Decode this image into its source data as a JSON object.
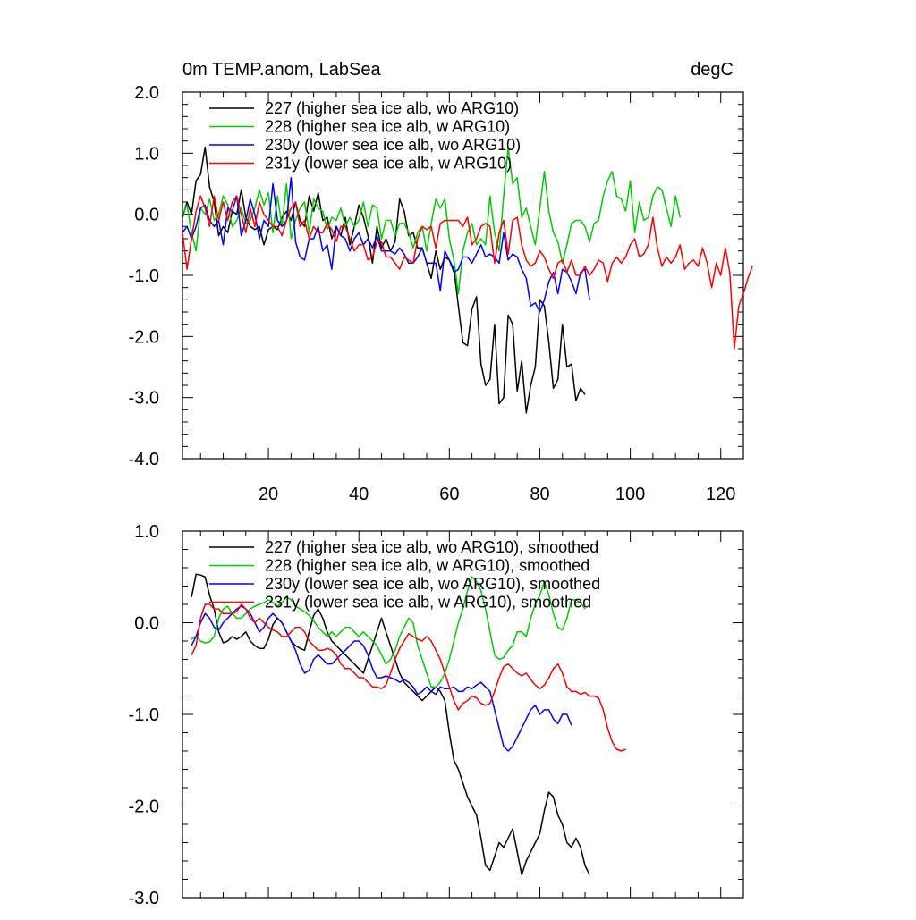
{
  "chart_data": [
    {
      "type": "line",
      "title": "0m TEMP.anom, LabSea",
      "units": "degC",
      "xlim": [
        1,
        125
      ],
      "ylim": [
        -4.0,
        2.0
      ],
      "xticks": [
        20,
        40,
        60,
        80,
        100,
        120
      ],
      "xtick_labels": [
        "20",
        "40",
        "60",
        "80",
        "100",
        "120"
      ],
      "yticks": [
        2.0,
        1.0,
        0.0,
        -1.0,
        -2.0,
        -3.0,
        -4.0
      ],
      "ytick_labels": [
        "2.0",
        "1.0",
        "0.0",
        "-1.0",
        "-2.0",
        "-3.0",
        "-4.0"
      ],
      "legend_position": "top-left",
      "series": [
        {
          "name": "227 (higher sea ice alb, wo ARG10)",
          "color": "#000000",
          "x_start": 1,
          "values": [
            -0.05,
            0.2,
            0.0,
            0.55,
            0.65,
            1.1,
            0.45,
            0.2,
            -0.35,
            -0.2,
            -0.3,
            0.05,
            0.0,
            0.4,
            -0.05,
            -0.2,
            -0.25,
            -0.2,
            -0.5,
            -0.25,
            -0.2,
            -0.25,
            -0.05,
            0.05,
            -0.1,
            0.2,
            -0.1,
            -0.2,
            0.3,
            0.05,
            0.35,
            -0.1,
            -0.05,
            -0.4,
            -0.2,
            -0.35,
            -0.05,
            -0.5,
            -0.2,
            0.15,
            -0.05,
            -0.35,
            -0.8,
            -0.2,
            -0.55,
            -0.4,
            -0.6,
            -0.45,
            0.25,
            0.05,
            -0.35,
            -0.3,
            -0.55,
            -0.55,
            -0.8,
            -1.05,
            -0.6,
            -0.9,
            -0.7,
            -0.75,
            -0.9,
            -1.5,
            -2.1,
            -2.15,
            -1.55,
            -1.35,
            -2.45,
            -2.8,
            -2.7,
            -1.8,
            -3.1,
            -3.0,
            -1.65,
            -1.8,
            -2.9,
            -2.4,
            -3.25,
            -2.8,
            -2.5,
            -1.4,
            -1.5,
            -2.1,
            -2.85,
            -2.7,
            -1.8,
            -2.5,
            -2.45,
            -3.05,
            -2.85,
            -2.95
          ]
        },
        {
          "name": "228 (higher sea ice alb, w ARG10)",
          "color": "#00cc00",
          "x_start": 1,
          "values": [
            0.0,
            0.15,
            -0.3,
            -0.6,
            0.1,
            0.0,
            0.25,
            -0.1,
            0.0,
            0.3,
            0.15,
            -0.2,
            -0.1,
            0.1,
            -0.15,
            -0.1,
            0.1,
            0.4,
            0.15,
            0.35,
            -0.3,
            0.3,
            -0.2,
            0.5,
            -0.4,
            -0.1,
            0.1,
            0.2,
            -0.3,
            0.25,
            0.1,
            0.05,
            -0.25,
            -0.05,
            -0.1,
            0.1,
            -0.2,
            -0.05,
            -0.2,
            -0.1,
            0.2,
            -0.2,
            0.15,
            0.1,
            -0.4,
            -0.1,
            -0.1,
            -0.35,
            -0.15,
            -0.15,
            -0.3,
            -0.55,
            -0.3,
            -0.2,
            -0.6,
            -0.15,
            0.25,
            0.1,
            0.25,
            -0.4,
            -0.75,
            -1.3,
            -0.6,
            -0.3,
            -0.15,
            -0.5,
            -0.4,
            -0.5,
            0.3,
            -0.3,
            -0.6,
            0.3,
            1.1,
            0.5,
            0.6,
            -0.05,
            0.1,
            -0.2,
            -0.5,
            0.1,
            0.7,
            0.05,
            -0.3,
            -0.45,
            -0.8,
            -0.5,
            -0.15,
            -0.1,
            -0.1,
            -0.2,
            -0.45,
            -0.15,
            -0.1,
            0.3,
            0.55,
            0.7,
            0.3,
            0.25,
            0.05,
            0.55,
            -0.3,
            0.2,
            -0.1,
            -0.05,
            0.3,
            0.45,
            0.4,
            0.1,
            -0.2,
            0.3,
            -0.05
          ]
        },
        {
          "name": "230y (lower sea ice alb, wo ARG10)",
          "color": "#0000ff",
          "x_start": 1,
          "values": [
            -0.3,
            -0.2,
            -0.4,
            -0.2,
            0.1,
            0.15,
            -0.1,
            -0.2,
            -0.1,
            -0.5,
            0.1,
            0.05,
            0.3,
            -0.35,
            -0.1,
            0.25,
            0.0,
            -0.4,
            -0.1,
            -0.2,
            0.5,
            -0.1,
            -0.2,
            -0.1,
            0.6,
            -0.45,
            -0.7,
            -0.75,
            -0.4,
            -0.4,
            -0.2,
            -0.6,
            -0.5,
            -0.9,
            -0.2,
            -0.35,
            -0.4,
            -0.6,
            -0.4,
            -0.3,
            -0.5,
            -0.4,
            -0.55,
            -0.35,
            -0.6,
            -0.6,
            -0.6,
            -0.65,
            -0.55,
            -0.65,
            -0.8,
            -0.8,
            -0.7,
            -0.55,
            -0.8,
            -0.8,
            -0.8,
            -1.25,
            -0.6,
            -0.75,
            -0.95,
            -0.9,
            -0.7,
            -0.7,
            -0.8,
            -0.65,
            -0.5,
            -0.7,
            -0.65,
            -0.7,
            -0.8,
            -0.3,
            -0.75,
            -0.65,
            -0.7,
            -0.9,
            -1.05,
            -1.5,
            -1.45,
            -1.6,
            -1.4,
            -1.1,
            -0.95,
            -1.3,
            -0.9,
            -0.95,
            -1.1,
            -1.3,
            -0.95,
            -0.9,
            -1.4
          ]
        },
        {
          "name": "231y (lower sea ice alb, w ARG10)",
          "color": "#ff0000",
          "x_start": 1,
          "values": [
            -0.3,
            -0.9,
            -0.4,
            0.05,
            0.3,
            0.1,
            -0.2,
            0.3,
            -0.1,
            0.2,
            -0.1,
            0.2,
            0.3,
            0.0,
            -0.3,
            0.1,
            -0.2,
            0.2,
            0.0,
            -0.1,
            -0.2,
            -0.2,
            -0.35,
            -0.1,
            0.1,
            0.2,
            -0.2,
            -0.1,
            -0.4,
            -0.2,
            -0.3,
            -0.3,
            -0.15,
            -0.25,
            -0.45,
            -0.2,
            -0.2,
            -0.4,
            -0.6,
            -0.5,
            -0.5,
            -0.75,
            -0.7,
            -0.45,
            -0.45,
            -0.7,
            -0.7,
            -0.8,
            -0.9,
            -0.7,
            -0.75,
            -0.8,
            -0.4,
            -0.2,
            -0.25,
            -0.2,
            -0.55,
            -0.15,
            -0.1,
            -0.1,
            -0.1,
            -0.1,
            -0.2,
            -0.05,
            -0.5,
            -0.4,
            -0.2,
            -0.15,
            -0.2,
            -0.8,
            -0.3,
            -0.1,
            -0.65,
            -0.1,
            -0.05,
            -0.5,
            -0.75,
            -0.85,
            -0.8,
            -0.6,
            -0.7,
            -0.9,
            -1.05,
            -0.8,
            -0.75,
            -0.95,
            -0.75,
            -1.0,
            -1.0,
            -0.85,
            -1.0,
            -0.9,
            -0.75,
            -0.8,
            -1.1,
            -0.8,
            -0.7,
            -0.8,
            -0.7,
            -0.5,
            -0.4,
            -0.7,
            -0.65,
            -0.5,
            -0.05,
            -0.55,
            -0.85,
            -0.7,
            -0.8,
            -0.7,
            -0.5,
            -0.9,
            -0.8,
            -0.75,
            -0.85,
            -0.55,
            -0.8,
            -1.2,
            -0.8,
            -1.0,
            -0.55,
            -0.95,
            -2.2,
            -1.5,
            -1.3,
            -1.05,
            -0.85
          ]
        }
      ]
    },
    {
      "type": "line",
      "title": "",
      "xlim": [
        1,
        125
      ],
      "ylim": [
        -3.0,
        1.0
      ],
      "xticks": [
        20,
        40,
        60,
        80,
        100,
        120
      ],
      "xtick_labels": [],
      "yticks": [
        1.0,
        0.0,
        -1.0,
        -2.0,
        -3.0
      ],
      "ytick_labels": [
        "1.0",
        "0.0",
        "-1.0",
        "-2.0",
        "-3.0"
      ],
      "legend_position": "top-left",
      "series": [
        {
          "name": "227 (higher sea ice alb, wo ARG10), smoothed",
          "color": "#000000",
          "x_start": 3,
          "values": [
            0.28,
            0.53,
            0.52,
            0.5,
            0.3,
            0.15,
            -0.1,
            -0.22,
            -0.2,
            -0.15,
            -0.18,
            -0.15,
            -0.1,
            -0.2,
            -0.25,
            -0.28,
            -0.28,
            -0.18,
            -0.02,
            0.05,
            0.0,
            -0.1,
            -0.2,
            -0.25,
            -0.28,
            -0.3,
            -0.1,
            0.08,
            0.15,
            0.05,
            -0.1,
            -0.2,
            -0.25,
            -0.3,
            -0.35,
            -0.4,
            -0.45,
            -0.5,
            -0.55,
            -0.4,
            -0.25,
            -0.1,
            0.05,
            -0.1,
            -0.25,
            -0.4,
            -0.55,
            -0.65,
            -0.7,
            -0.75,
            -0.8,
            -0.85,
            -0.8,
            -0.75,
            -0.7,
            -0.75,
            -0.85,
            -1.2,
            -1.5,
            -1.6,
            -1.75,
            -1.9,
            -2.0,
            -2.1,
            -2.35,
            -2.65,
            -2.7,
            -2.55,
            -2.4,
            -2.45,
            -2.35,
            -2.25,
            -2.5,
            -2.75,
            -2.6,
            -2.5,
            -2.4,
            -2.3,
            -2.05,
            -1.85,
            -1.9,
            -2.1,
            -2.2,
            -2.4,
            -2.45,
            -2.35,
            -2.45,
            -2.65,
            -2.75
          ]
        },
        {
          "name": "228 (higher sea ice alb, w ARG10), smoothed",
          "color": "#00cc00",
          "x_start": 3,
          "values": [
            -0.18,
            -0.15,
            -0.2,
            -0.22,
            -0.21,
            -0.15,
            0.05,
            0.15,
            0.18,
            0.1,
            0.05,
            0.05,
            0.1,
            0.15,
            0.18,
            0.2,
            0.22,
            0.25,
            0.22,
            0.18,
            0.22,
            0.28,
            0.25,
            0.18,
            0.15,
            0.12,
            0.08,
            0.02,
            -0.05,
            -0.1,
            -0.15,
            -0.1,
            -0.15,
            -0.1,
            -0.05,
            -0.05,
            -0.1,
            -0.15,
            -0.1,
            -0.15,
            -0.2,
            -0.25,
            -0.35,
            -0.45,
            -0.4,
            -0.3,
            -0.15,
            -0.05,
            0.05,
            0.0,
            -0.25,
            -0.4,
            -0.55,
            -0.7,
            -0.7,
            -0.65,
            -0.55,
            -0.4,
            -0.2,
            0.0,
            0.15,
            0.35,
            0.5,
            0.45,
            0.35,
            0.15,
            -0.1,
            -0.35,
            -0.4,
            -0.38,
            -0.3,
            -0.25,
            -0.1,
            -0.1,
            -0.15,
            0.05,
            0.2,
            0.3,
            0.45,
            0.3,
            0.1,
            -0.05,
            -0.08,
            0.05,
            0.25,
            0.25,
            0.22,
            0.15
          ]
        },
        {
          "name": "230y (lower sea ice alb, wo ARG10), smoothed",
          "color": "#0000ff",
          "x_start": 3,
          "values": [
            -0.25,
            -0.15,
            0.0,
            0.1,
            0.05,
            -0.05,
            -0.08,
            0.0,
            0.05,
            0.1,
            0.15,
            0.18,
            0.15,
            0.1,
            0.0,
            -0.1,
            -0.05,
            0.05,
            0.1,
            0.05,
            0.0,
            -0.1,
            -0.2,
            -0.3,
            -0.45,
            -0.55,
            -0.52,
            -0.4,
            -0.35,
            -0.4,
            -0.45,
            -0.45,
            -0.4,
            -0.35,
            -0.3,
            -0.25,
            -0.2,
            -0.2,
            -0.25,
            -0.35,
            -0.5,
            -0.6,
            -0.6,
            -0.58,
            -0.6,
            -0.62,
            -0.65,
            -0.62,
            -0.65,
            -0.7,
            -0.78,
            -0.75,
            -0.7,
            -0.75,
            -0.78,
            -0.7,
            -0.72,
            -0.72,
            -0.7,
            -0.75,
            -0.75,
            -0.7,
            -0.72,
            -0.68,
            -0.65,
            -0.7,
            -0.75,
            -0.95,
            -1.15,
            -1.35,
            -1.4,
            -1.35,
            -1.25,
            -1.15,
            -1.05,
            -0.95,
            -0.9,
            -1.0,
            -0.95,
            -0.95,
            -1.05,
            -1.1,
            -1.0,
            -1.0,
            -1.12
          ]
        },
        {
          "name": "231y (lower sea ice alb, w ARG10), smoothed",
          "color": "#ff0000",
          "x_start": 3,
          "values": [
            -0.35,
            -0.25,
            0.05,
            0.2,
            0.2,
            0.15,
            0.15,
            0.1,
            0.1,
            0.1,
            0.12,
            0.2,
            0.15,
            0.05,
            0.0,
            0.05,
            0.0,
            -0.05,
            -0.08,
            -0.1,
            -0.15,
            -0.15,
            -0.1,
            -0.05,
            -0.05,
            -0.1,
            -0.2,
            -0.25,
            -0.3,
            -0.3,
            -0.28,
            -0.3,
            -0.35,
            -0.45,
            -0.5,
            -0.5,
            -0.55,
            -0.6,
            -0.6,
            -0.65,
            -0.7,
            -0.7,
            -0.72,
            -0.68,
            -0.55,
            -0.4,
            -0.28,
            -0.2,
            -0.12,
            -0.15,
            -0.18,
            -0.2,
            -0.15,
            -0.2,
            -0.3,
            -0.4,
            -0.55,
            -0.7,
            -0.85,
            -0.95,
            -0.88,
            -0.85,
            -0.8,
            -0.82,
            -0.88,
            -0.9,
            -0.88,
            -0.75,
            -0.6,
            -0.48,
            -0.45,
            -0.5,
            -0.55,
            -0.58,
            -0.55,
            -0.62,
            -0.68,
            -0.72,
            -0.68,
            -0.6,
            -0.5,
            -0.45,
            -0.55,
            -0.7,
            -0.75,
            -0.75,
            -0.78,
            -0.76,
            -0.8,
            -0.8,
            -0.82,
            -0.95,
            -1.15,
            -1.3,
            -1.38,
            -1.4,
            -1.38
          ]
        }
      ]
    }
  ]
}
